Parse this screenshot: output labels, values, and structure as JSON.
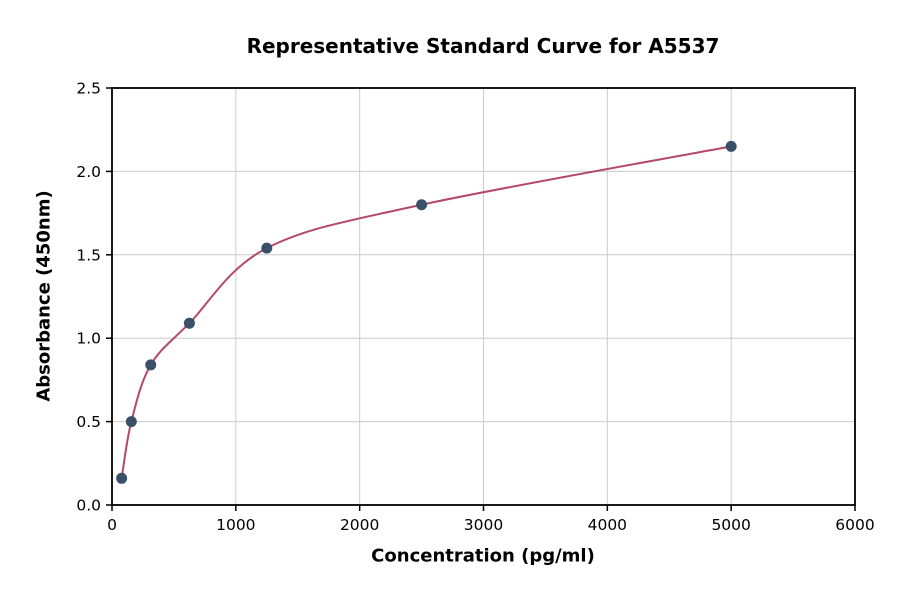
{
  "chart_data": {
    "type": "scatter",
    "title": "Representative Standard Curve for A5537",
    "xlabel": "Concentration (pg/ml)",
    "ylabel": "Absorbance (450nm)",
    "xlim": [
      0,
      6000
    ],
    "ylim": [
      0,
      2.5
    ],
    "x_ticks": [
      0,
      1000,
      2000,
      3000,
      4000,
      5000,
      6000
    ],
    "y_ticks": [
      0.0,
      0.5,
      1.0,
      1.5,
      2.0,
      2.5
    ],
    "grid": true,
    "legend": "none",
    "points": [
      {
        "x": 78,
        "y": 0.16
      },
      {
        "x": 156,
        "y": 0.5
      },
      {
        "x": 313,
        "y": 0.84
      },
      {
        "x": 625,
        "y": 1.09
      },
      {
        "x": 1250,
        "y": 1.54
      },
      {
        "x": 2500,
        "y": 1.8
      },
      {
        "x": 5000,
        "y": 2.15
      }
    ],
    "curve": "smooth fit through points",
    "point_color": "#3a5068",
    "curve_color": "#b5476c",
    "grid_color": "#cccccc",
    "axis_color": "#000000"
  }
}
